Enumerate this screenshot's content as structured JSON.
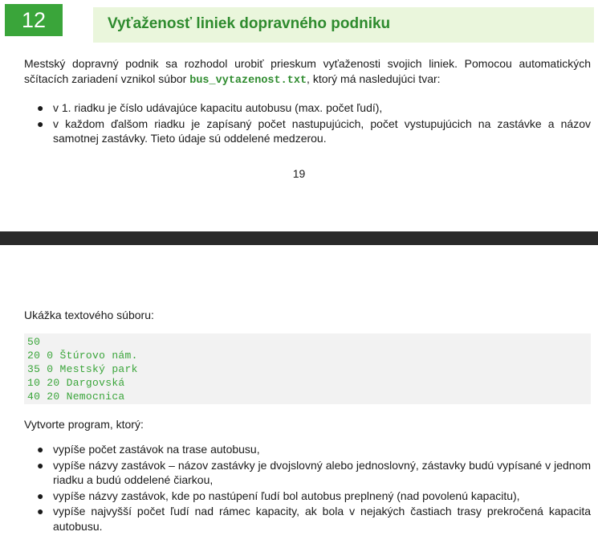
{
  "header": {
    "number": "12",
    "title": "Vyťaženosť liniek dopravného podniku"
  },
  "intro": {
    "text_before": "Mestský dopravný podnik sa rozhodol urobiť prieskum vyťaženosti svojich liniek. Pomocou automatických sčítacích zariadení vznikol súbor ",
    "filename": "bus_vytazenost.txt",
    "text_after": ", ktorý má nasledujúci tvar:"
  },
  "format_items": [
    "v 1. riadku je číslo udávajúce kapacitu autobusu (max. počet ľudí),",
    "v každom ďalšom riadku je zapísaný počet nastupujúcich, počet vystupujúcich na zastávke a názov samotnej zastávky. Tieto údaje sú oddelené medzerou."
  ],
  "page_number": "19",
  "sample": {
    "label": "Ukážka textového súboru:",
    "lines": [
      "50",
      "20 0 Štúrovo nám.",
      "35 0 Mestský park",
      "10 20 Dargovská",
      "40 20 Nemocnica"
    ]
  },
  "task": {
    "label": "Vytvorte program, ktorý:",
    "items": [
      "vypíše počet zastávok na trase autobusu,",
      "vypíše názvy zastávok – názov zastávky je dvojslovný alebo jednoslovný, zástavky budú vypísané v jednom riadku a budú oddelené čiarkou,",
      "vypíše názvy zastávok, kde po nastúpení ľudí bol autobus preplnený (nad povolenú kapacitu),",
      "vypíše najvyšší počet ľudí nad rámec kapacity, ak bola v nejakých častiach trasy prekročená kapacita autobusu."
    ]
  },
  "bullet_symbol": "●",
  "colors": {
    "accent_green": "#3aa53a",
    "title_green": "#2e8b2e",
    "title_bg": "#eaf6dc",
    "code_bg": "#f2f2f2",
    "separator": "#2a2a2a"
  }
}
